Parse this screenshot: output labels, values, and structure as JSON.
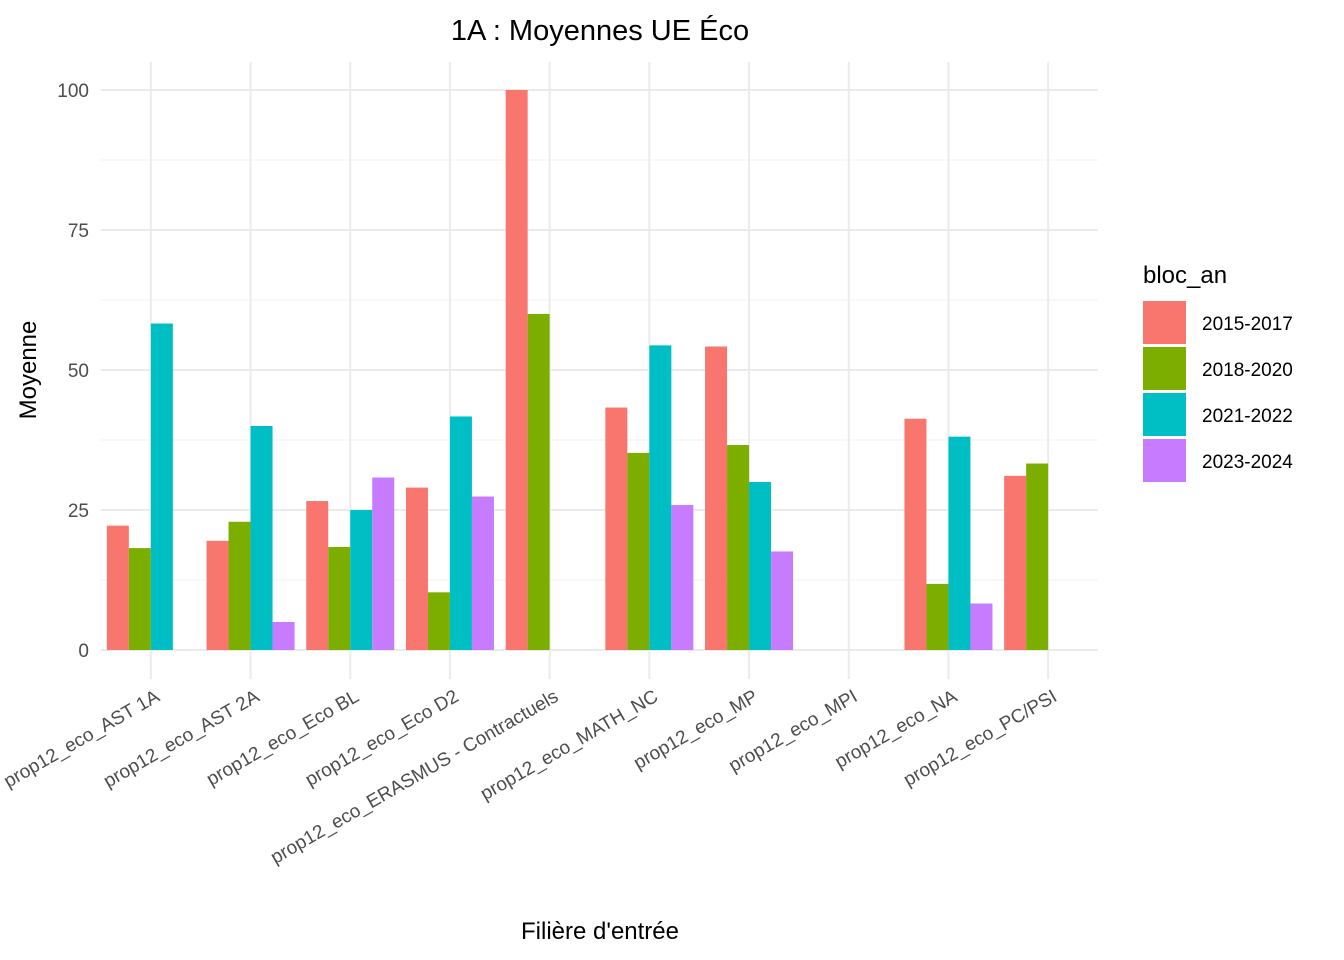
{
  "chart_data": {
    "type": "bar",
    "title": "1A : Moyennes UE Éco",
    "xlabel": "Filière d'entrée",
    "ylabel": "Moyenne",
    "ylim": [
      0,
      105
    ],
    "yticks": [
      0,
      25,
      50,
      75,
      100
    ],
    "grid": true,
    "legend": {
      "title": "bloc_an",
      "placement": "right"
    },
    "categories": [
      "prop12_eco_AST 1A",
      "prop12_eco_AST 2A",
      "prop12_eco_Eco BL",
      "prop12_eco_Eco D2",
      "prop12_eco_ERASMUS - Contractuels",
      "prop12_eco_MATH_NC",
      "prop12_eco_MP",
      "prop12_eco_MPI",
      "prop12_eco_NA",
      "prop12_eco_PC/PSI"
    ],
    "series": [
      {
        "name": "2015-2017",
        "color": "#F8766D",
        "values": [
          22.2,
          19.5,
          26.6,
          29.0,
          100,
          43.3,
          54.2,
          null,
          41.3,
          31.1
        ]
      },
      {
        "name": "2018-2020",
        "color": "#7CAE00",
        "values": [
          18.2,
          22.9,
          18.4,
          10.3,
          60.0,
          35.2,
          36.6,
          null,
          11.8,
          33.3
        ]
      },
      {
        "name": "2021-2022",
        "color": "#00BFC4",
        "values": [
          58.3,
          40.0,
          25.0,
          41.7,
          null,
          54.4,
          30.0,
          null,
          38.1,
          null
        ]
      },
      {
        "name": "2023-2024",
        "color": "#C77CFF",
        "values": [
          null,
          5.0,
          30.8,
          27.4,
          null,
          25.9,
          17.6,
          null,
          8.3,
          null
        ]
      }
    ]
  }
}
